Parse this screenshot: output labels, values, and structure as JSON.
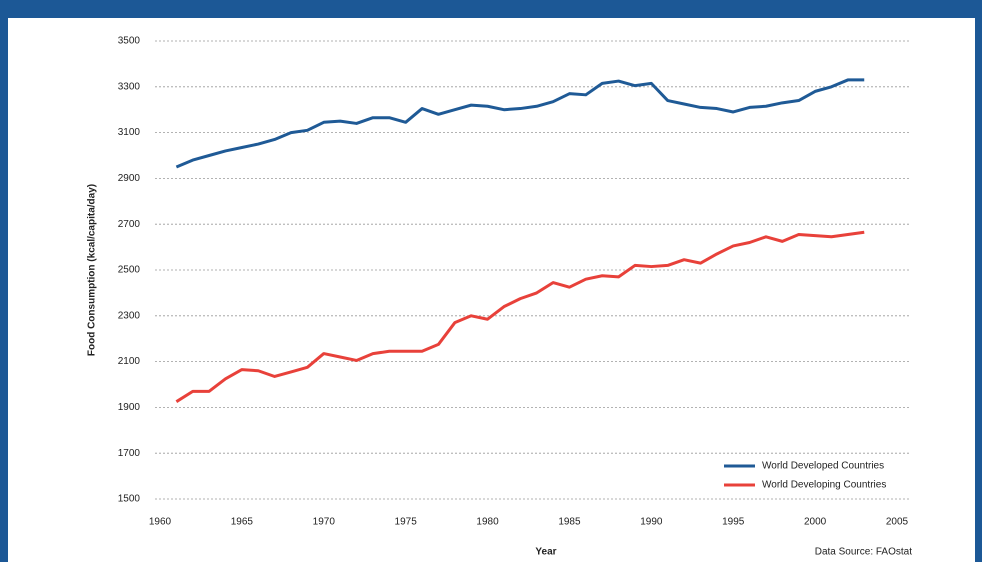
{
  "chart_data": {
    "type": "line",
    "x_label": "Year",
    "y_label": "Food Consumption (kcal/capita/day)",
    "source": "Data Source: FAOstat",
    "x": [
      1961,
      1962,
      1963,
      1964,
      1965,
      1966,
      1967,
      1968,
      1969,
      1970,
      1971,
      1972,
      1973,
      1974,
      1975,
      1976,
      1977,
      1978,
      1979,
      1980,
      1981,
      1982,
      1983,
      1984,
      1985,
      1986,
      1987,
      1988,
      1989,
      1990,
      1991,
      1992,
      1993,
      1994,
      1995,
      1996,
      1997,
      1998,
      1999,
      2000,
      2001,
      2002,
      2003
    ],
    "series": [
      {
        "name": "World Developed Countries",
        "color": "#1f5a96",
        "values": [
          2950,
          2980,
          3000,
          3020,
          3035,
          3050,
          3070,
          3100,
          3110,
          3145,
          3150,
          3140,
          3165,
          3165,
          3145,
          3205,
          3180,
          3200,
          3220,
          3215,
          3200,
          3205,
          3215,
          3235,
          3270,
          3265,
          3315,
          3325,
          3305,
          3315,
          3240,
          3225,
          3210,
          3205,
          3190,
          3210,
          3215,
          3230,
          3240,
          3280,
          3300,
          3330,
          3330
        ]
      },
      {
        "name": "World Developing Countries",
        "color": "#e8413a",
        "values": [
          1925,
          1970,
          1970,
          2025,
          2065,
          2060,
          2035,
          2055,
          2075,
          2135,
          2120,
          2105,
          2135,
          2145,
          2145,
          2145,
          2175,
          2270,
          2300,
          2285,
          2340,
          2375,
          2400,
          2445,
          2425,
          2460,
          2475,
          2470,
          2520,
          2515,
          2520,
          2545,
          2530,
          2570,
          2605,
          2620,
          2645,
          2625,
          2655,
          2650,
          2645,
          2655,
          2665
        ]
      }
    ],
    "xlim": [
      1960,
      2005
    ],
    "xticks": [
      1960,
      1965,
      1970,
      1975,
      1980,
      1985,
      1990,
      1995,
      2000,
      2005
    ],
    "ylim": [
      1500,
      3500
    ],
    "yticks": [
      1500,
      1700,
      1900,
      2100,
      2300,
      2500,
      2700,
      2900,
      3100,
      3300,
      3500
    ],
    "grid": true,
    "legend": "lower right"
  }
}
